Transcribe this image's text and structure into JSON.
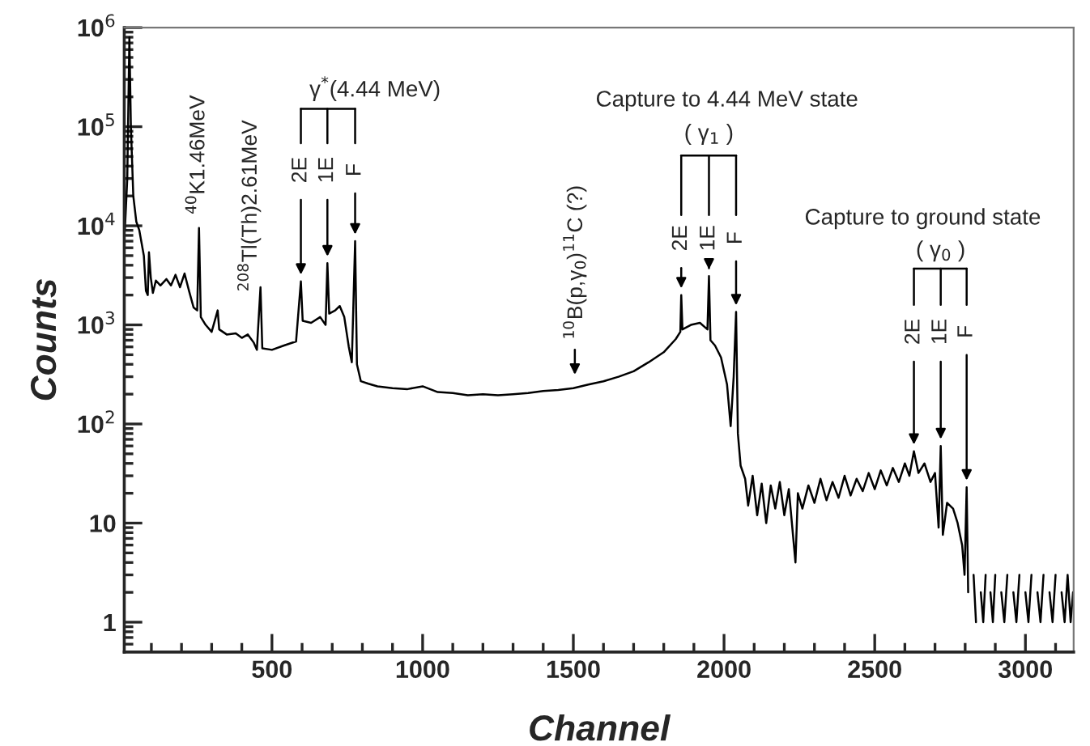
{
  "chart_data": {
    "type": "line",
    "xlabel": "Channel",
    "ylabel": "Counts",
    "log": "y",
    "color": "#000000",
    "xlim": [
      10,
      3160
    ],
    "ylim": [
      0.5,
      1000000
    ],
    "xticks": [
      {
        "value": 100,
        "label": null
      },
      {
        "value": 200,
        "label": null
      },
      {
        "value": 300,
        "label": null
      },
      {
        "value": 400,
        "label": null
      },
      500,
      {
        "value": 600,
        "label": null
      },
      {
        "value": 700,
        "label": null
      },
      {
        "value": 800,
        "label": null
      },
      {
        "value": 900,
        "label": null
      },
      1000,
      {
        "value": 1100,
        "label": null
      },
      {
        "value": 1200,
        "label": null
      },
      {
        "value": 1300,
        "label": null
      },
      {
        "value": 1400,
        "label": null
      },
      1500,
      {
        "value": 1600,
        "label": null
      },
      {
        "value": 1700,
        "label": null
      },
      {
        "value": 1800,
        "label": null
      },
      {
        "value": 1900,
        "label": null
      },
      2000,
      {
        "value": 2100,
        "label": null
      },
      {
        "value": 2200,
        "label": null
      },
      {
        "value": 2300,
        "label": null
      },
      {
        "value": 2400,
        "label": null
      },
      2500,
      {
        "value": 2600,
        "label": null
      },
      {
        "value": 2700,
        "label": null
      },
      {
        "value": 2800,
        "label": null
      },
      {
        "value": 2900,
        "label": null
      },
      3000,
      {
        "value": 3100,
        "label": null
      }
    ],
    "yticks": [
      {
        "value": 0.6,
        "label": null
      },
      {
        "value": 0.7,
        "label": null
      },
      {
        "value": 0.8,
        "label": null
      },
      {
        "value": 0.9,
        "label": null
      },
      1,
      {
        "value": 2,
        "label": null
      },
      {
        "value": 3,
        "label": null
      },
      {
        "value": 4,
        "label": null
      },
      {
        "value": 5,
        "label": null
      },
      {
        "value": 6,
        "label": null
      },
      {
        "value": 7,
        "label": null
      },
      {
        "value": 8,
        "label": null
      },
      {
        "value": 9,
        "label": null
      },
      10,
      {
        "value": 20,
        "label": null
      },
      {
        "value": 30,
        "label": null
      },
      {
        "value": 40,
        "label": null
      },
      {
        "value": 50,
        "label": null
      },
      {
        "value": 60,
        "label": null
      },
      {
        "value": 70,
        "label": null
      },
      {
        "value": 80,
        "label": null
      },
      {
        "value": 90,
        "label": null
      },
      {
        "value": 100,
        "label": "10$^{2}$"
      },
      {
        "value": 200,
        "label": null
      },
      {
        "value": 300,
        "label": null
      },
      {
        "value": 400,
        "label": null
      },
      {
        "value": 500,
        "label": null
      },
      {
        "value": 600,
        "label": null
      },
      {
        "value": 700,
        "label": null
      },
      {
        "value": 800,
        "label": null
      },
      {
        "value": 900,
        "label": null
      },
      {
        "value": 1000,
        "label": "10$^{3}$"
      },
      {
        "value": 2000,
        "label": null
      },
      {
        "value": 3000,
        "label": null
      },
      {
        "value": 4000,
        "label": null
      },
      {
        "value": 5000,
        "label": null
      },
      {
        "value": 6000,
        "label": null
      },
      {
        "value": 7000,
        "label": null
      },
      {
        "value": 8000,
        "label": null
      },
      {
        "value": 9000,
        "label": null
      },
      {
        "value": 10000,
        "label": "10$^{4}$"
      },
      {
        "value": 20000,
        "label": null
      },
      {
        "value": 30000,
        "label": null
      },
      {
        "value": 40000,
        "label": null
      },
      {
        "value": 50000,
        "label": null
      },
      {
        "value": 60000,
        "label": null
      },
      {
        "value": 70000,
        "label": null
      },
      {
        "value": 80000,
        "label": null
      },
      {
        "value": 90000,
        "label": null
      },
      {
        "value": 100000,
        "label": "10$^{5}$"
      },
      {
        "value": 200000,
        "label": null
      },
      {
        "value": 300000,
        "label": null
      },
      {
        "value": 400000,
        "label": null
      },
      {
        "value": 500000,
        "label": null
      },
      {
        "value": 600000,
        "label": null
      },
      {
        "value": 700000,
        "label": null
      },
      {
        "value": 800000,
        "label": null
      },
      {
        "value": 900000,
        "label": null
      },
      {
        "value": 1000000,
        "label": "10$^{6}$"
      }
    ],
    "x": [
      12,
      20,
      27,
      32,
      40,
      50,
      60,
      75,
      82,
      88,
      92,
      98,
      105,
      115,
      130,
      150,
      165,
      180,
      195,
      210,
      225,
      240,
      252,
      258,
      264,
      280,
      300,
      320,
      325,
      350,
      380,
      400,
      420,
      440,
      450,
      462,
      468,
      500,
      540,
      580,
      596,
      602,
      630,
      660,
      678,
      684,
      690,
      710,
      725,
      740,
      755,
      765,
      776,
      782,
      795,
      820,
      850,
      900,
      950,
      1000,
      1050,
      1100,
      1150,
      1200,
      1250,
      1300,
      1350,
      1400,
      1450,
      1500,
      1550,
      1600,
      1650,
      1700,
      1750,
      1800,
      1840,
      1855,
      1858,
      1862,
      1890,
      1920,
      1945,
      1950,
      1955,
      1970,
      1990,
      2010,
      2022,
      2032,
      2040,
      2046,
      2055,
      2070,
      2080,
      2095,
      2110,
      2125,
      2140,
      2155,
      2170,
      2185,
      2200,
      2215,
      2237,
      2245,
      2260,
      2280,
      2300,
      2320,
      2340,
      2360,
      2380,
      2400,
      2420,
      2440,
      2460,
      2480,
      2500,
      2520,
      2540,
      2560,
      2580,
      2600,
      2615,
      2630,
      2645,
      2665,
      2685,
      2700,
      2712,
      2719,
      2726,
      2740,
      2760,
      2775,
      2790,
      2798,
      2805,
      2810,
      2820,
      2828,
      2836,
      2844,
      2852,
      2860,
      2868,
      2876,
      2884,
      2892,
      2900,
      2910,
      2920,
      2930,
      2940,
      2950,
      2960,
      2970,
      2980,
      2990,
      3000,
      3010,
      3020,
      3030,
      3040,
      3050,
      3060,
      3070,
      3080,
      3090,
      3100,
      3110,
      3120,
      3130,
      3140,
      3150,
      3158
    ],
    "values": [
      9000,
      30000,
      800000,
      100000,
      20000,
      11000,
      9000,
      5000,
      2200,
      2000,
      5400,
      3000,
      2100,
      2800,
      2500,
      2900,
      2500,
      3200,
      2400,
      3300,
      2200,
      1500,
      1400,
      9500,
      1200,
      1000,
      850,
      1400,
      900,
      800,
      820,
      740,
      800,
      660,
      560,
      2400,
      580,
      560,
      620,
      680,
      2750,
      1100,
      1050,
      1200,
      1000,
      4200,
      1300,
      1400,
      1550,
      1200,
      600,
      420,
      7000,
      400,
      270,
      255,
      240,
      230,
      225,
      240,
      210,
      205,
      195,
      200,
      195,
      200,
      205,
      215,
      220,
      230,
      250,
      270,
      300,
      340,
      420,
      530,
      720,
      850,
      2000,
      900,
      1000,
      1050,
      900,
      3100,
      700,
      620,
      470,
      250,
      95,
      300,
      1350,
      80,
      38,
      28,
      15,
      30,
      12,
      25,
      10,
      24,
      14,
      26,
      12,
      22,
      4,
      20,
      14,
      24,
      16,
      28,
      17,
      26,
      18,
      30,
      19,
      28,
      21,
      32,
      22,
      34,
      24,
      36,
      26,
      40,
      30,
      53,
      32,
      40,
      26,
      32,
      9,
      60,
      7.6,
      16,
      14,
      10,
      6,
      3,
      23,
      2,
      null,
      3,
      1,
      null,
      2,
      1,
      3,
      null,
      2,
      1,
      3,
      null,
      2,
      1,
      3,
      null,
      2,
      1,
      3,
      null,
      2,
      1,
      3,
      null,
      2,
      1,
      3,
      null,
      2,
      1,
      3,
      null,
      2,
      1,
      3,
      1,
      2
    ],
    "annotations": [
      {
        "text": "$^{40}$K1.46MeV",
        "x": 258,
        "y": 9500
      },
      {
        "text": "$^{208}$Tl(Th)2.61MeV",
        "x": 462,
        "y": 2400
      },
      "γ$^{*}$(4.44 MeV)",
      {
        "text": "2E",
        "x": 596,
        "y": 2750
      },
      {
        "text": "1E",
        "x": 684,
        "y": 4200
      },
      {
        "text": "F",
        "x": 776,
        "y": 7000
      },
      {
        "text": "$^{10}$B(p,γ$_{0}$)$^{11}$C (?)",
        "x": 1505,
        "y": 230
      },
      "Capture to 4.44 MeV state",
      "( γ$_{1}$ )",
      {
        "text": "2E",
        "x": 1858,
        "y": 2000
      },
      {
        "text": "1E",
        "x": 1950,
        "y": 3100
      },
      {
        "text": "F",
        "x": 2040,
        "y": 1350
      },
      "Capture to ground state",
      "( γ$_{0}$ )",
      {
        "text": "2E",
        "x": 2630,
        "y": 53
      },
      {
        "text": "1E",
        "x": 2719,
        "y": 60
      },
      {
        "text": "F",
        "x": 2805,
        "y": 23
      }
    ]
  }
}
